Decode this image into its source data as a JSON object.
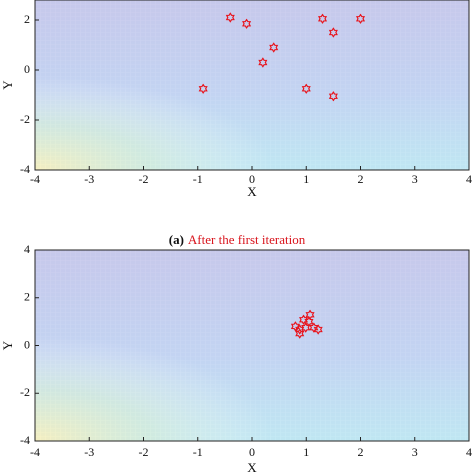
{
  "chart_data": [
    {
      "type": "scatter",
      "xlabel": "X",
      "ylabel": "Y",
      "caption_label": "(a)",
      "caption": "After the first iteration",
      "x": [
        -0.4,
        -0.1,
        1.3,
        2.0,
        1.5,
        0.4,
        0.2,
        -0.9,
        1.0,
        1.5
      ],
      "y": [
        2.1,
        1.85,
        2.05,
        2.05,
        1.5,
        0.9,
        0.3,
        -0.75,
        -0.75,
        -1.05
      ],
      "color": "#e8141c",
      "xlim": [
        -4,
        4
      ],
      "ylim": [
        -4,
        2.8
      ],
      "xticks": [
        -4,
        -3,
        -2,
        -1,
        0,
        1,
        2,
        3,
        4
      ],
      "yticks": [
        -4,
        -2,
        0,
        2
      ]
    },
    {
      "type": "scatter",
      "xlabel": "X",
      "ylabel": "Y",
      "x": [
        0.8,
        0.95,
        1.05,
        1.07,
        0.88,
        0.99,
        1.14,
        1.22,
        0.88
      ],
      "y": [
        0.8,
        1.08,
        1.0,
        1.29,
        0.5,
        0.75,
        0.75,
        0.67,
        0.67
      ],
      "color": "#e8141c",
      "xlim": [
        -4,
        4
      ],
      "ylim": [
        -4,
        4
      ],
      "xticks": [
        -4,
        -3,
        -2,
        -1,
        0,
        1,
        2,
        3,
        4
      ],
      "yticks": [
        -4,
        -2,
        0,
        2,
        4
      ]
    }
  ]
}
